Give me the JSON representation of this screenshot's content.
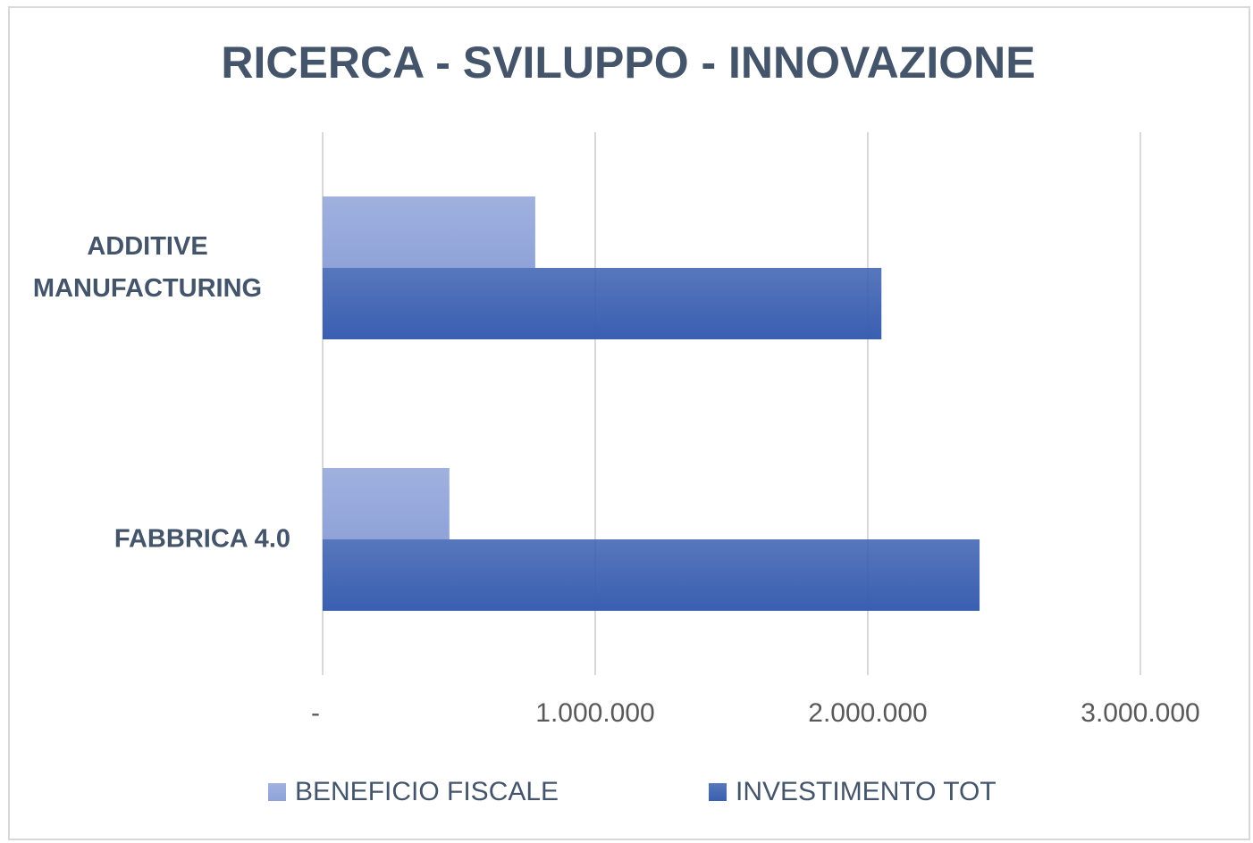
{
  "chart_data": {
    "type": "hbar",
    "title": "RICERCA - SVILUPPO - INNOVAZIONE",
    "categories": [
      "ADDITIVE MANUFACTURING",
      "FABBRICA 4.0"
    ],
    "series": [
      {
        "name": "BENEFICIO FISCALE",
        "color": "#8fa3d9",
        "values": [
          780000,
          465000
        ]
      },
      {
        "name": "INVESTIMENTO TOT",
        "color": "#3a5fb0",
        "values": [
          2050000,
          2410000
        ]
      }
    ],
    "xlim": [
      0,
      3000000
    ],
    "xticks": [
      {
        "value": 0,
        "label": "-"
      },
      {
        "value": 1000000,
        "label": "1.000.000"
      },
      {
        "value": 2000000,
        "label": "2.000.000"
      },
      {
        "value": 3000000,
        "label": "3.000.000"
      }
    ],
    "grid": true,
    "legend": "bottom"
  }
}
